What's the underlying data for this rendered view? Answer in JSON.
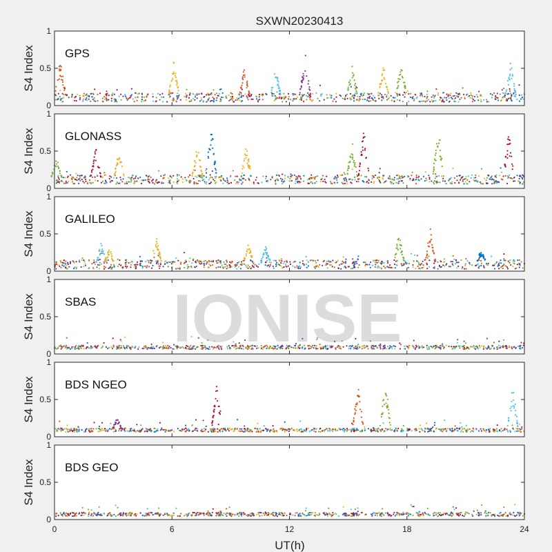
{
  "figure": {
    "title": "SXWN20230413",
    "watermark": "IONISE",
    "xlabel": "UT(h)"
  },
  "chart_data": {
    "type": "scatter",
    "title": "SXWN20230413",
    "xlabel": "UT(h)",
    "ylabel": "S4 Index",
    "xlim": [
      0,
      24
    ],
    "ylim": [
      0,
      1
    ],
    "xticks": [
      "0",
      "6",
      "12",
      "18",
      "24"
    ],
    "yticks": [
      "0",
      "0.5",
      "1"
    ],
    "grid": false,
    "colors": [
      "#0072BD",
      "#D95319",
      "#EDB120",
      "#7E2F8E",
      "#77AC30",
      "#4DBEEE",
      "#A2142F"
    ],
    "panels": [
      {
        "label": "GPS",
        "baseline": 0.11,
        "spikes": [
          {
            "x": 0.3,
            "peak": 0.63,
            "color": 1
          },
          {
            "x": 6.1,
            "peak": 0.63,
            "color": 2
          },
          {
            "x": 9.7,
            "peak": 0.53,
            "color": 1
          },
          {
            "x": 11.3,
            "peak": 0.52,
            "color": 5
          },
          {
            "x": 12.8,
            "peak": 0.72,
            "color": 3
          },
          {
            "x": 15.2,
            "peak": 0.55,
            "color": 4
          },
          {
            "x": 16.8,
            "peak": 0.6,
            "color": 2
          },
          {
            "x": 17.7,
            "peak": 0.62,
            "color": 4
          },
          {
            "x": 23.3,
            "peak": 0.6,
            "color": 5
          }
        ]
      },
      {
        "label": "GLONASS",
        "baseline": 0.12,
        "spikes": [
          {
            "x": 0.1,
            "peak": 0.45,
            "color": 4
          },
          {
            "x": 2.1,
            "peak": 0.58,
            "color": 6
          },
          {
            "x": 3.3,
            "peak": 0.52,
            "color": 2
          },
          {
            "x": 7.3,
            "peak": 0.6,
            "color": 2
          },
          {
            "x": 8.0,
            "peak": 0.9,
            "color": 0
          },
          {
            "x": 9.8,
            "peak": 0.58,
            "color": 2
          },
          {
            "x": 15.2,
            "peak": 0.65,
            "color": 4
          },
          {
            "x": 15.8,
            "peak": 0.92,
            "color": 6
          },
          {
            "x": 19.6,
            "peak": 0.88,
            "color": 4
          },
          {
            "x": 23.2,
            "peak": 0.78,
            "color": 6
          }
        ]
      },
      {
        "label": "GALILEO",
        "baseline": 0.09,
        "spikes": [
          {
            "x": 2.4,
            "peak": 0.4,
            "color": 5
          },
          {
            "x": 2.8,
            "peak": 0.32,
            "color": 2
          },
          {
            "x": 5.2,
            "peak": 0.5,
            "color": 2
          },
          {
            "x": 9.9,
            "peak": 0.38,
            "color": 2
          },
          {
            "x": 10.8,
            "peak": 0.35,
            "color": 5
          },
          {
            "x": 17.6,
            "peak": 0.52,
            "color": 4
          },
          {
            "x": 19.2,
            "peak": 0.6,
            "color": 1
          },
          {
            "x": 21.8,
            "peak": 0.3,
            "color": 0
          }
        ]
      },
      {
        "label": "SBAS",
        "baseline": 0.09,
        "spikes": []
      },
      {
        "label": "BDS NGEO",
        "baseline": 0.09,
        "spikes": [
          {
            "x": 3.2,
            "peak": 0.25,
            "color": 3
          },
          {
            "x": 8.3,
            "peak": 0.72,
            "color": 6
          },
          {
            "x": 15.5,
            "peak": 0.72,
            "color": 1
          },
          {
            "x": 16.9,
            "peak": 0.78,
            "color": 4
          },
          {
            "x": 23.4,
            "peak": 0.72,
            "color": 5
          }
        ]
      },
      {
        "label": "BDS GEO",
        "baseline": 0.07,
        "spikes": []
      }
    ]
  }
}
